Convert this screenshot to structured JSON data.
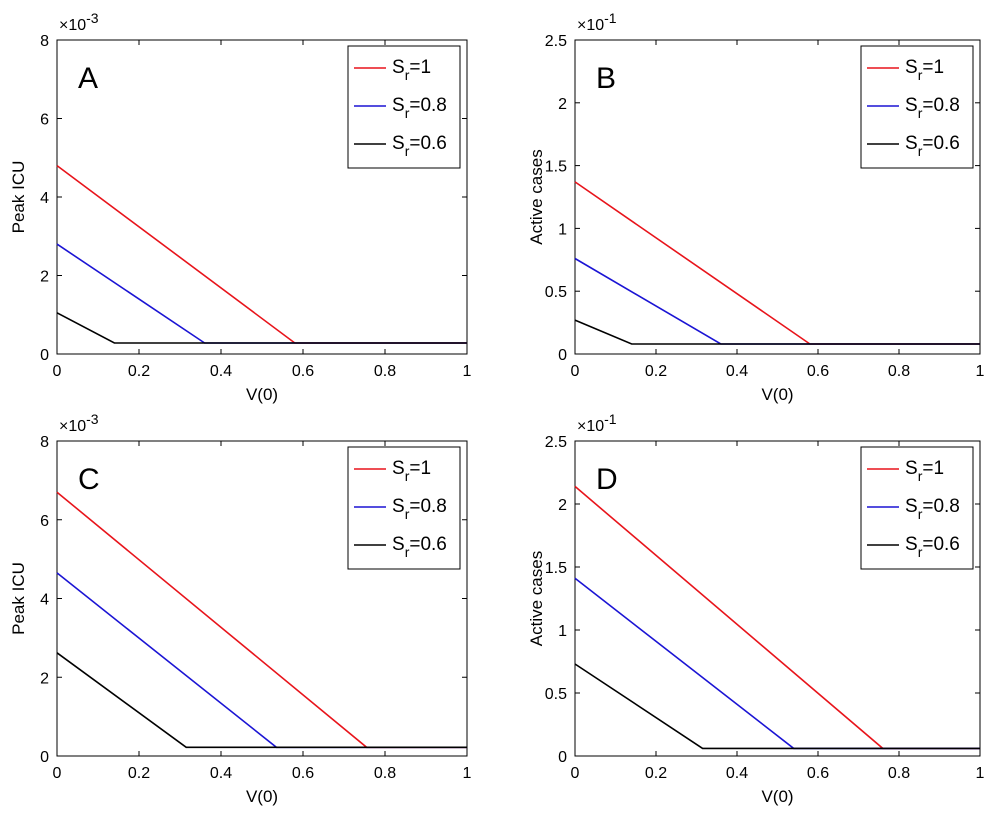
{
  "chart_data": [
    {
      "panel": "A",
      "type": "line",
      "xlabel": "V(0)",
      "ylabel": "Peak ICU",
      "exponent_base": "×10",
      "exponent_power": "-3",
      "xlim": [
        0,
        1
      ],
      "ylim": [
        0,
        8
      ],
      "xticks": [
        "0",
        "0.2",
        "0.4",
        "0.6",
        "0.8",
        "1"
      ],
      "yticks": [
        "0",
        "2",
        "4",
        "6",
        "8"
      ],
      "legend_position": "top-right",
      "series": [
        {
          "name": "S_r=1",
          "label_main": "S",
          "label_sub": "r",
          "label_rest": "=1",
          "color": "#e8141b",
          "points": [
            [
              0,
              4.8
            ],
            [
              0.58,
              0.28
            ],
            [
              1,
              0.28
            ]
          ]
        },
        {
          "name": "S_r=0.8",
          "label_main": "S",
          "label_sub": "r",
          "label_rest": "=0.8",
          "color": "#1b14d4",
          "points": [
            [
              0,
              2.8
            ],
            [
              0.36,
              0.28
            ],
            [
              1,
              0.28
            ]
          ]
        },
        {
          "name": "S_r=0.6",
          "label_main": "S",
          "label_sub": "r",
          "label_rest": "=0.6",
          "color": "#000000",
          "points": [
            [
              0,
              1.05
            ],
            [
              0.14,
              0.28
            ],
            [
              1,
              0.28
            ]
          ]
        }
      ]
    },
    {
      "panel": "B",
      "type": "line",
      "xlabel": "V(0)",
      "ylabel": "Active cases",
      "exponent_base": "×10",
      "exponent_power": "-1",
      "xlim": [
        0,
        1
      ],
      "ylim": [
        0,
        2.5
      ],
      "xticks": [
        "0",
        "0.2",
        "0.4",
        "0.6",
        "0.8",
        "1"
      ],
      "yticks": [
        "0",
        "0.5",
        "1",
        "1.5",
        "2",
        "2.5"
      ],
      "legend_position": "top-right",
      "series": [
        {
          "name": "S_r=1",
          "label_main": "S",
          "label_sub": "r",
          "label_rest": "=1",
          "color": "#e8141b",
          "points": [
            [
              0,
              1.37
            ],
            [
              0.58,
              0.08
            ],
            [
              1,
              0.08
            ]
          ]
        },
        {
          "name": "S_r=0.8",
          "label_main": "S",
          "label_sub": "r",
          "label_rest": "=0.8",
          "color": "#1b14d4",
          "points": [
            [
              0,
              0.76
            ],
            [
              0.36,
              0.08
            ],
            [
              1,
              0.08
            ]
          ]
        },
        {
          "name": "S_r=0.6",
          "label_main": "S",
          "label_sub": "r",
          "label_rest": "=0.6",
          "color": "#000000",
          "points": [
            [
              0,
              0.27
            ],
            [
              0.14,
              0.08
            ],
            [
              1,
              0.08
            ]
          ]
        }
      ]
    },
    {
      "panel": "C",
      "type": "line",
      "xlabel": "V(0)",
      "ylabel": "Peak ICU",
      "exponent_base": "×10",
      "exponent_power": "-3",
      "xlim": [
        0,
        1
      ],
      "ylim": [
        0,
        8
      ],
      "xticks": [
        "0",
        "0.2",
        "0.4",
        "0.6",
        "0.8",
        "1"
      ],
      "yticks": [
        "0",
        "2",
        "4",
        "6",
        "8"
      ],
      "legend_position": "top-right",
      "series": [
        {
          "name": "S_r=1",
          "label_main": "S",
          "label_sub": "r",
          "label_rest": "=1",
          "color": "#e8141b",
          "points": [
            [
              0,
              6.7
            ],
            [
              0.755,
              0.22
            ],
            [
              1,
              0.22
            ]
          ]
        },
        {
          "name": "S_r=0.8",
          "label_main": "S",
          "label_sub": "r",
          "label_rest": "=0.8",
          "color": "#1b14d4",
          "points": [
            [
              0,
              4.65
            ],
            [
              0.535,
              0.22
            ],
            [
              1,
              0.22
            ]
          ]
        },
        {
          "name": "S_r=0.6",
          "label_main": "S",
          "label_sub": "r",
          "label_rest": "=0.6",
          "color": "#000000",
          "points": [
            [
              0,
              2.62
            ],
            [
              0.315,
              0.22
            ],
            [
              1,
              0.22
            ]
          ]
        }
      ]
    },
    {
      "panel": "D",
      "type": "line",
      "xlabel": "V(0)",
      "ylabel": "Active cases",
      "exponent_base": "×10",
      "exponent_power": "-1",
      "xlim": [
        0,
        1
      ],
      "ylim": [
        0,
        2.5
      ],
      "xticks": [
        "0",
        "0.2",
        "0.4",
        "0.6",
        "0.8",
        "1"
      ],
      "yticks": [
        "0",
        "0.5",
        "1",
        "1.5",
        "2",
        "2.5"
      ],
      "legend_position": "top-right",
      "series": [
        {
          "name": "S_r=1",
          "label_main": "S",
          "label_sub": "r",
          "label_rest": "=1",
          "color": "#e8141b",
          "points": [
            [
              0,
              2.14
            ],
            [
              0.76,
              0.06
            ],
            [
              1,
              0.06
            ]
          ]
        },
        {
          "name": "S_r=0.8",
          "label_main": "S",
          "label_sub": "r",
          "label_rest": "=0.8",
          "color": "#1b14d4",
          "points": [
            [
              0,
              1.41
            ],
            [
              0.54,
              0.06
            ],
            [
              1,
              0.06
            ]
          ]
        },
        {
          "name": "S_r=0.6",
          "label_main": "S",
          "label_sub": "r",
          "label_rest": "=0.6",
          "color": "#000000",
          "points": [
            [
              0,
              0.73
            ],
            [
              0.315,
              0.06
            ],
            [
              1,
              0.06
            ]
          ]
        }
      ]
    }
  ]
}
